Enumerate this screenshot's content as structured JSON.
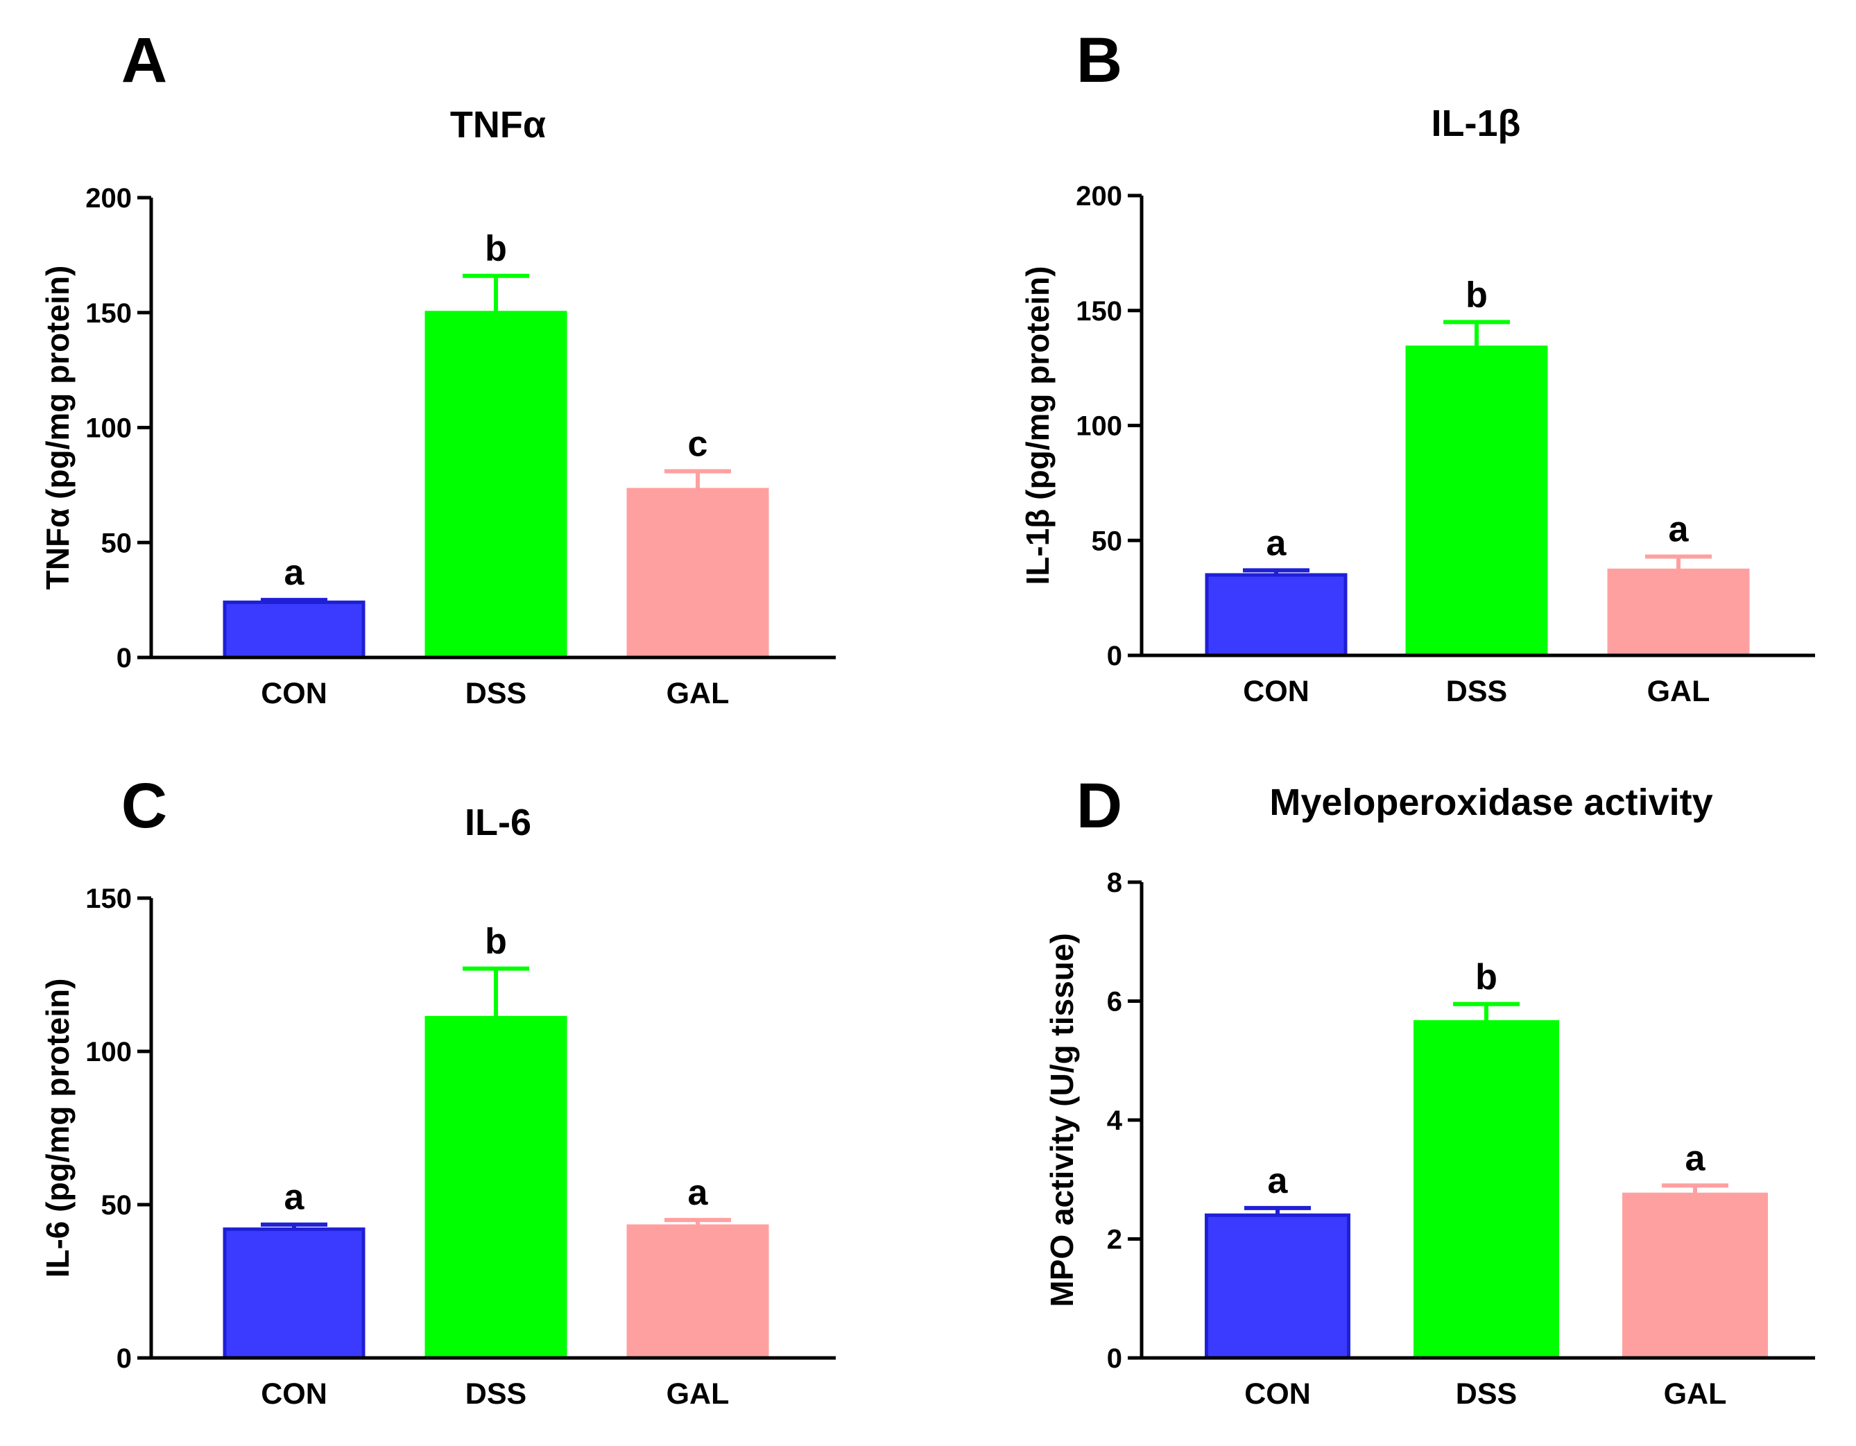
{
  "figure": {
    "panel_letters": [
      "A",
      "B",
      "C",
      "D"
    ]
  },
  "colors": {
    "CON_fill": "#3b3bff",
    "CON_stroke": "#1f1fd6",
    "DSS_fill": "#00ff00",
    "DSS_stroke": "#00ff00",
    "GAL_fill": "#ffa0a0",
    "GAL_stroke": "#ffa0a0"
  },
  "chart_data": [
    {
      "type": "bar",
      "panel": "A",
      "title": "TNFα",
      "ylabel": "TNFα (pg/mg protein)",
      "xlabel": "",
      "categories": [
        "CON",
        "DSS",
        "GAL"
      ],
      "values": [
        24,
        150,
        73
      ],
      "errors": [
        1,
        16,
        8
      ],
      "significance": [
        "a",
        "b",
        "c"
      ],
      "ylim": [
        0,
        200
      ],
      "yticks": [
        0,
        50,
        100,
        150,
        200
      ]
    },
    {
      "type": "bar",
      "panel": "B",
      "title": "IL-1β",
      "ylabel": "IL-1β (pg/mg protein)",
      "xlabel": "",
      "categories": [
        "CON",
        "DSS",
        "GAL"
      ],
      "values": [
        35,
        134,
        37
      ],
      "errors": [
        2,
        11,
        6
      ],
      "significance": [
        "a",
        "b",
        "a"
      ],
      "ylim": [
        0,
        200
      ],
      "yticks": [
        0,
        50,
        100,
        150,
        200
      ]
    },
    {
      "type": "bar",
      "panel": "C",
      "title": "IL-6",
      "ylabel": "IL-6 (pg/mg protein)",
      "xlabel": "",
      "categories": [
        "CON",
        "DSS",
        "GAL"
      ],
      "values": [
        42,
        111,
        43
      ],
      "errors": [
        1.5,
        16,
        2
      ],
      "significance": [
        "a",
        "b",
        "a"
      ],
      "ylim": [
        0,
        150
      ],
      "yticks": [
        0,
        50,
        100,
        150
      ]
    },
    {
      "type": "bar",
      "panel": "D",
      "title": "Myeloperoxidase activity",
      "ylabel": "MPO activity (U/g tissue)",
      "xlabel": "",
      "categories": [
        "CON",
        "DSS",
        "GAL"
      ],
      "values": [
        2.4,
        5.65,
        2.75
      ],
      "errors": [
        0.12,
        0.3,
        0.15
      ],
      "significance": [
        "a",
        "b",
        "a"
      ],
      "ylim": [
        0,
        8
      ],
      "yticks": [
        0,
        2,
        4,
        6,
        8
      ]
    }
  ]
}
